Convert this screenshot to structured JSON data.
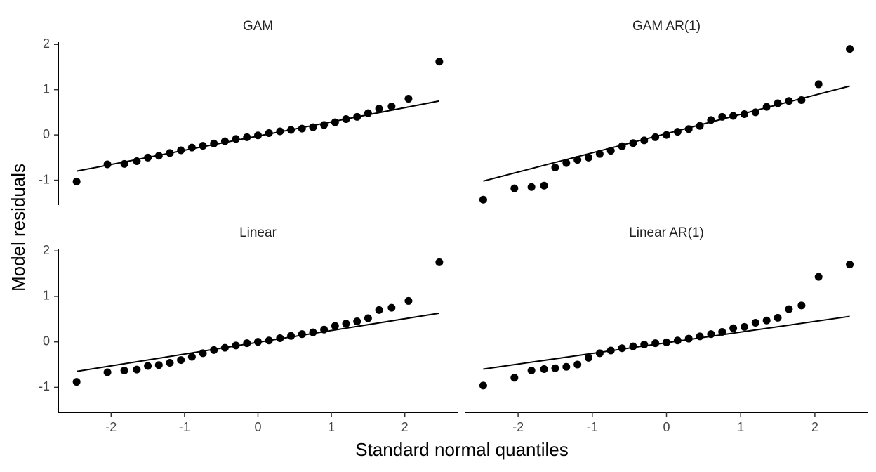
{
  "x_label": "Standard normal quantiles",
  "y_label": "Model residuals",
  "chart_data": [
    {
      "type": "scatter",
      "title": "GAM",
      "color": "#000000",
      "x": [
        -2.47,
        -2.05,
        -1.82,
        -1.65,
        -1.5,
        -1.35,
        -1.2,
        -1.05,
        -0.9,
        -0.75,
        -0.6,
        -0.45,
        -0.3,
        -0.15,
        0,
        0.15,
        0.3,
        0.45,
        0.6,
        0.75,
        0.9,
        1.05,
        1.2,
        1.35,
        1.5,
        1.65,
        1.82,
        2.05,
        2.47
      ],
      "y": [
        -1.03,
        -0.65,
        -0.64,
        -0.58,
        -0.5,
        -0.46,
        -0.4,
        -0.34,
        -0.28,
        -0.24,
        -0.19,
        -0.14,
        -0.09,
        -0.05,
        -0.01,
        0.04,
        0.08,
        0.11,
        0.14,
        0.17,
        0.22,
        0.28,
        0.35,
        0.4,
        0.48,
        0.58,
        0.63,
        0.8,
        1.62
      ],
      "line": {
        "x": [
          -2.47,
          2.47
        ],
        "y": [
          -0.8,
          0.75
        ]
      },
      "xlim": [
        -2.72,
        2.72
      ],
      "ylim": [
        -1.55,
        2.05
      ],
      "yticks": [
        -1,
        0,
        1,
        2
      ]
    },
    {
      "type": "scatter",
      "title": "GAM AR(1)",
      "color": "#000000",
      "x": [
        -2.47,
        -2.05,
        -1.82,
        -1.65,
        -1.5,
        -1.35,
        -1.2,
        -1.05,
        -0.9,
        -0.75,
        -0.6,
        -0.45,
        -0.3,
        -0.15,
        0,
        0.15,
        0.3,
        0.45,
        0.6,
        0.75,
        0.9,
        1.05,
        1.2,
        1.35,
        1.5,
        1.65,
        1.82,
        2.05,
        2.47
      ],
      "y": [
        -1.43,
        -1.18,
        -1.15,
        -1.12,
        -0.72,
        -0.62,
        -0.55,
        -0.5,
        -0.42,
        -0.35,
        -0.25,
        -0.18,
        -0.12,
        -0.05,
        0,
        0.07,
        0.13,
        0.2,
        0.33,
        0.4,
        0.42,
        0.46,
        0.5,
        0.62,
        0.7,
        0.75,
        0.77,
        1.12,
        1.9
      ],
      "line": {
        "x": [
          -2.47,
          2.47
        ],
        "y": [
          -1.02,
          1.08
        ]
      },
      "xlim": [
        -2.72,
        2.72
      ],
      "ylim": [
        -1.55,
        2.05
      ]
    },
    {
      "type": "scatter",
      "title": "Linear",
      "color": "#000000",
      "x": [
        -2.47,
        -2.05,
        -1.82,
        -1.65,
        -1.5,
        -1.35,
        -1.2,
        -1.05,
        -0.9,
        -0.75,
        -0.6,
        -0.45,
        -0.3,
        -0.15,
        0,
        0.15,
        0.3,
        0.45,
        0.6,
        0.75,
        0.9,
        1.05,
        1.2,
        1.35,
        1.5,
        1.65,
        1.82,
        2.05,
        2.47
      ],
      "y": [
        -0.88,
        -0.67,
        -0.63,
        -0.61,
        -0.53,
        -0.51,
        -0.46,
        -0.4,
        -0.33,
        -0.25,
        -0.18,
        -0.13,
        -0.08,
        -0.03,
        0,
        0.03,
        0.08,
        0.13,
        0.17,
        0.21,
        0.27,
        0.35,
        0.4,
        0.45,
        0.52,
        0.7,
        0.75,
        0.9,
        1.75
      ],
      "line": {
        "x": [
          -2.47,
          2.47
        ],
        "y": [
          -0.65,
          0.63
        ]
      },
      "xlim": [
        -2.72,
        2.72
      ],
      "ylim": [
        -1.55,
        2.05
      ],
      "xticks": [
        -2,
        -1,
        0,
        1,
        2
      ],
      "yticks": [
        -1,
        0,
        1,
        2
      ]
    },
    {
      "type": "scatter",
      "title": "Linear AR(1)",
      "color": "#000000",
      "x": [
        -2.47,
        -2.05,
        -1.82,
        -1.65,
        -1.5,
        -1.35,
        -1.2,
        -1.05,
        -0.9,
        -0.75,
        -0.6,
        -0.45,
        -0.3,
        -0.15,
        0,
        0.15,
        0.3,
        0.45,
        0.6,
        0.75,
        0.9,
        1.05,
        1.2,
        1.35,
        1.5,
        1.65,
        1.82,
        2.05,
        2.47
      ],
      "y": [
        -0.96,
        -0.79,
        -0.63,
        -0.6,
        -0.58,
        -0.55,
        -0.5,
        -0.35,
        -0.25,
        -0.19,
        -0.14,
        -0.1,
        -0.06,
        -0.03,
        -0.01,
        0.03,
        0.07,
        0.12,
        0.17,
        0.22,
        0.3,
        0.33,
        0.42,
        0.47,
        0.53,
        0.72,
        0.8,
        1.43,
        1.7
      ],
      "line": {
        "x": [
          -2.47,
          2.47
        ],
        "y": [
          -0.6,
          0.56
        ]
      },
      "xlim": [
        -2.72,
        2.72
      ],
      "ylim": [
        -1.55,
        2.05
      ],
      "xticks": [
        -2,
        -1,
        0,
        1,
        2
      ]
    }
  ]
}
